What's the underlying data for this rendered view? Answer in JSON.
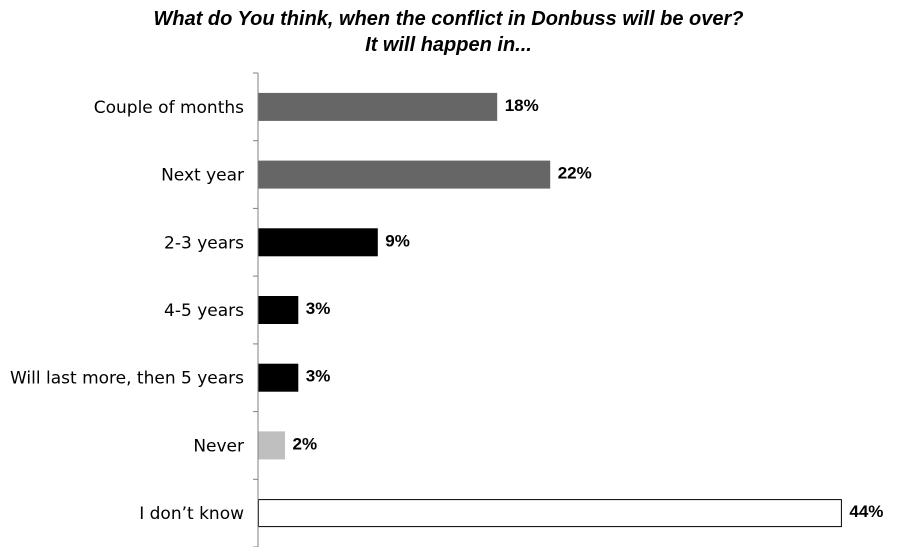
{
  "chart_data": {
    "type": "bar",
    "orientation": "horizontal",
    "title": "What do You think, when the conflict in Donbuss will be over?",
    "subtitle": "It will happen in...",
    "categories": [
      "Couple of months",
      "Next year",
      "2-3 years",
      "4-5 years",
      "Will last more, then 5 years",
      "Never",
      "I don’t know"
    ],
    "values": [
      18,
      22,
      9,
      3,
      3,
      2,
      44
    ],
    "value_labels": [
      "18%",
      "22%",
      "9%",
      "3%",
      "3%",
      "2%",
      "44%"
    ],
    "bar_colors": [
      "#666666",
      "#666666",
      "#000000",
      "#000000",
      "#000000",
      "#bfbfbf",
      "#ffffff"
    ],
    "bar_border_colors": [
      "#666666",
      "#666666",
      "#000000",
      "#000000",
      "#000000",
      "#bfbfbf",
      "#000000"
    ],
    "xlim": [
      0,
      44.5
    ],
    "grid": false,
    "legend": "none",
    "axis_color": "#808080"
  }
}
